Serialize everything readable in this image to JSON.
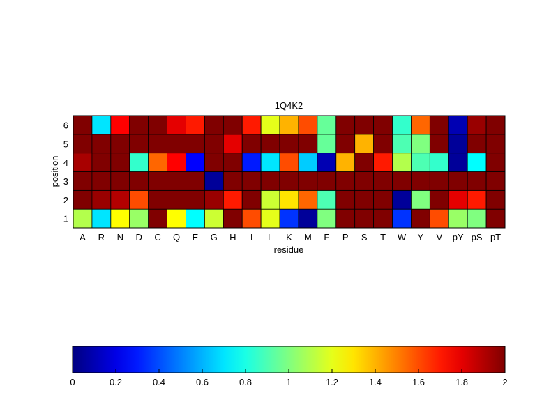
{
  "chart_data": {
    "type": "heatmap",
    "title": "1Q4K2",
    "xlabel": "residue",
    "ylabel": "position",
    "x_categories": [
      "A",
      "R",
      "N",
      "D",
      "C",
      "Q",
      "E",
      "G",
      "H",
      "I",
      "L",
      "K",
      "M",
      "F",
      "P",
      "S",
      "T",
      "W",
      "Y",
      "V",
      "pY",
      "pS",
      "pT"
    ],
    "y_categories": [
      "1",
      "2",
      "3",
      "4",
      "5",
      "6"
    ],
    "values": [
      [
        1.1,
        0.7,
        1.25,
        1.05,
        2.0,
        1.25,
        0.75,
        1.15,
        2.0,
        1.6,
        1.2,
        0.35,
        0.05,
        1.0,
        2.0,
        2.0,
        2.0,
        0.35,
        2.0,
        1.6,
        1.05,
        1.0,
        2.0
      ],
      [
        2.0,
        1.95,
        1.9,
        1.6,
        2.0,
        2.0,
        2.0,
        1.95,
        1.7,
        2.0,
        1.15,
        1.3,
        1.55,
        0.9,
        2.0,
        2.0,
        2.0,
        0.05,
        1.0,
        2.0,
        1.8,
        1.7,
        2.0
      ],
      [
        2.0,
        2.0,
        2.0,
        2.0,
        2.0,
        2.0,
        2.0,
        0.05,
        2.0,
        2.0,
        2.0,
        2.0,
        2.0,
        2.0,
        2.0,
        2.0,
        2.0,
        2.0,
        2.0,
        2.0,
        2.0,
        2.0,
        2.0
      ],
      [
        1.92,
        2.0,
        2.0,
        0.85,
        1.55,
        1.75,
        0.25,
        2.0,
        2.0,
        0.3,
        0.7,
        1.6,
        0.65,
        0.1,
        1.4,
        2.0,
        1.7,
        1.1,
        0.9,
        0.85,
        0.05,
        0.75,
        2.0
      ],
      [
        2.0,
        2.0,
        2.0,
        2.0,
        2.0,
        2.0,
        2.0,
        2.0,
        1.8,
        2.0,
        2.0,
        2.0,
        2.0,
        0.95,
        2.0,
        1.4,
        2.0,
        0.9,
        1.0,
        2.0,
        0.05,
        2.0,
        2.0
      ],
      [
        2.0,
        0.7,
        1.75,
        2.0,
        2.0,
        1.8,
        1.7,
        2.0,
        2.0,
        1.7,
        1.2,
        1.4,
        1.6,
        0.95,
        2.0,
        2.0,
        2.0,
        0.85,
        1.55,
        2.0,
        0.1,
        1.95,
        2.0
      ]
    ],
    "color_scale": "jet",
    "colorbar": {
      "position": "bottom",
      "range": [
        0,
        2
      ],
      "ticks": [
        "0",
        "0.2",
        "0.4",
        "0.6",
        "0.8",
        "1",
        "1.2",
        "1.4",
        "1.6",
        "1.8",
        "2"
      ]
    },
    "grid": true
  }
}
